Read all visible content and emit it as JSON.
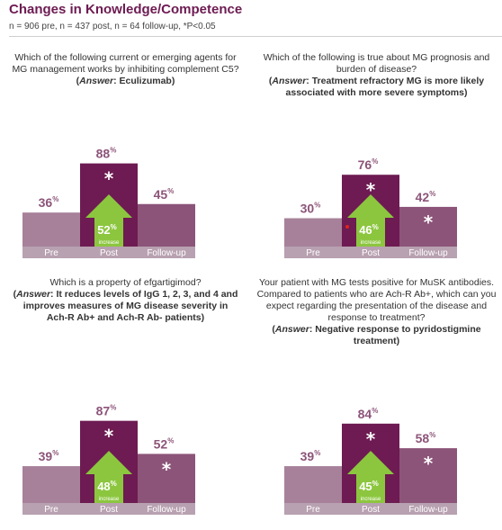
{
  "header": {
    "title": "Changes in Knowledge/Competence",
    "subtitle": "n = 906 pre, n = 437 post, n = 64 follow-up, *P<0.05"
  },
  "colors": {
    "pre": "#a7819a",
    "post": "#6d1b52",
    "followup": "#8c5479",
    "axis_band": "#b8a1b1",
    "arrow": "#8cc63f",
    "label": "#8c5479",
    "star": "#ffffff",
    "red_dot": "#e2231a"
  },
  "panels": [
    {
      "question_text": "Which of the following current or emerging agents for MG management works by inhibiting complement C5?",
      "answer_prefix": "(",
      "answer_word": "Answer",
      "answer_text": ": Eculizumab)",
      "chart_data": {
        "type": "bar",
        "categories": [
          "Pre",
          "Post",
          "Follow-up"
        ],
        "values": [
          36,
          88,
          45
        ],
        "significant": [
          false,
          true,
          false
        ],
        "increase": "52",
        "increase_unit": "%",
        "increase_label": "increase",
        "value_unit": "%"
      }
    },
    {
      "question_text": "Which of the following is true about MG prognosis and burden of disease?",
      "answer_prefix": "(",
      "answer_word": "Answer",
      "answer_text": ": Treatment refractory MG is more likely associated with more severe symptoms)",
      "chart_data": {
        "type": "bar",
        "categories": [
          "Pre",
          "Post",
          "Follow-up"
        ],
        "values": [
          30,
          76,
          42
        ],
        "significant": [
          false,
          true,
          true
        ],
        "increase": "46",
        "increase_unit": "%",
        "increase_label": "increase",
        "value_unit": "%"
      }
    },
    {
      "question_text": "Which is a property of efgartigimod?",
      "answer_prefix": "(",
      "answer_word": "Answer",
      "answer_text": ": It reduces levels of IgG 1, 2, 3, and 4 and improves measures of MG disease severity in Ach-R Ab+ and Ach-R Ab- patients)",
      "chart_data": {
        "type": "bar",
        "categories": [
          "Pre",
          "Post",
          "Follow-up"
        ],
        "values": [
          39,
          87,
          52
        ],
        "significant": [
          false,
          true,
          true
        ],
        "increase": "48",
        "increase_unit": "%",
        "increase_label": "increase",
        "value_unit": "%"
      }
    },
    {
      "question_text": "Your patient with MG tests positive for MuSK antibodies. Compared to patients who are Ach-R Ab+, which can you expect regarding the presentation of the disease and response to treatment?",
      "answer_prefix": "(",
      "answer_word": "Answer",
      "answer_text": ": Negative response to pyridostigmine treatment)",
      "chart_data": {
        "type": "bar",
        "categories": [
          "Pre",
          "Post",
          "Follow-up"
        ],
        "values": [
          39,
          84,
          58
        ],
        "significant": [
          false,
          true,
          true
        ],
        "increase": "45",
        "increase_unit": "%",
        "increase_label": "increase",
        "value_unit": "%"
      }
    }
  ]
}
